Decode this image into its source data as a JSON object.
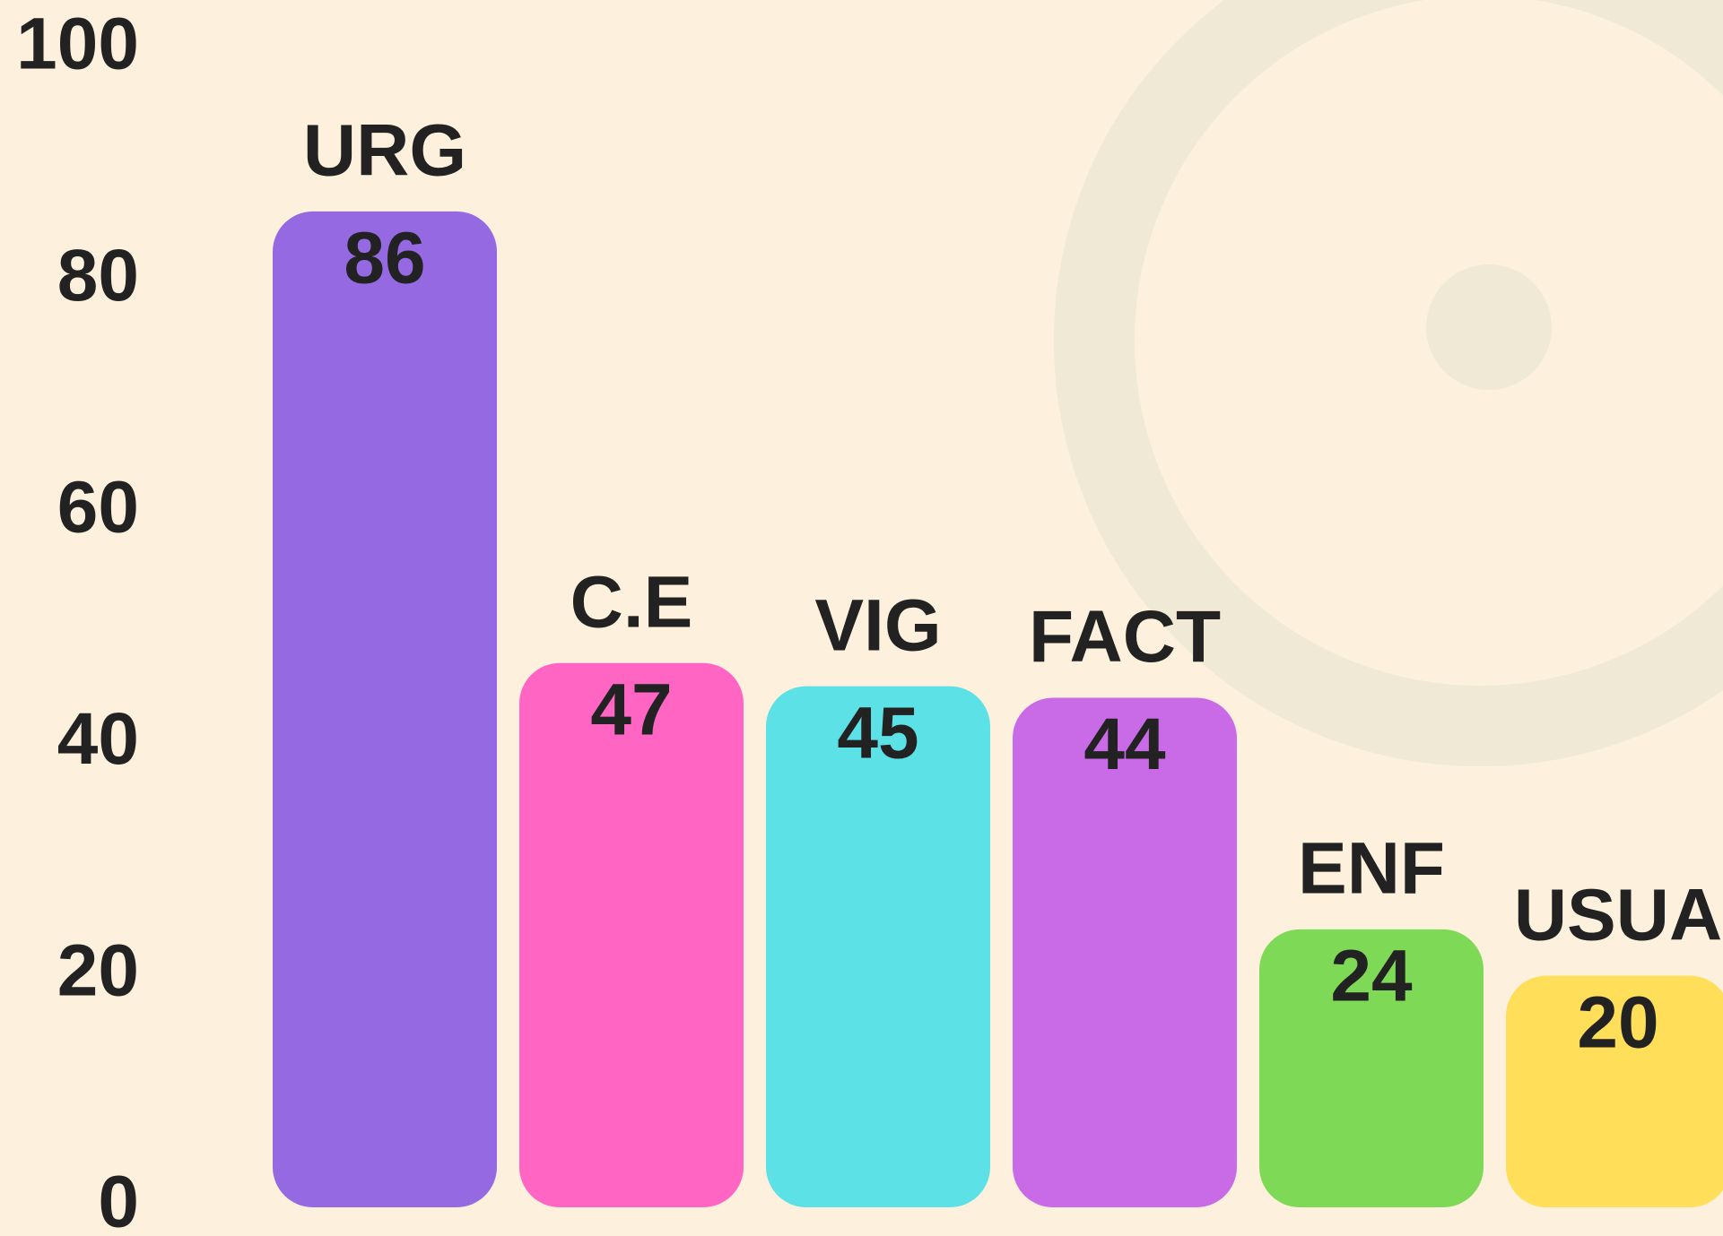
{
  "chart_data": {
    "type": "bar",
    "categories": [
      "URG",
      "C.E",
      "VIG",
      "FACT",
      "ENF",
      "USUA"
    ],
    "values": [
      86,
      47,
      45,
      44,
      24,
      20
    ],
    "colors": [
      "#9469e2",
      "#ff66c4",
      "#5ce1e6",
      "#c96ae6",
      "#7ed957",
      "#ffde59"
    ],
    "ylim": [
      0,
      100
    ],
    "yticks": [
      0,
      20,
      40,
      60,
      80,
      100
    ],
    "grid": false
  }
}
